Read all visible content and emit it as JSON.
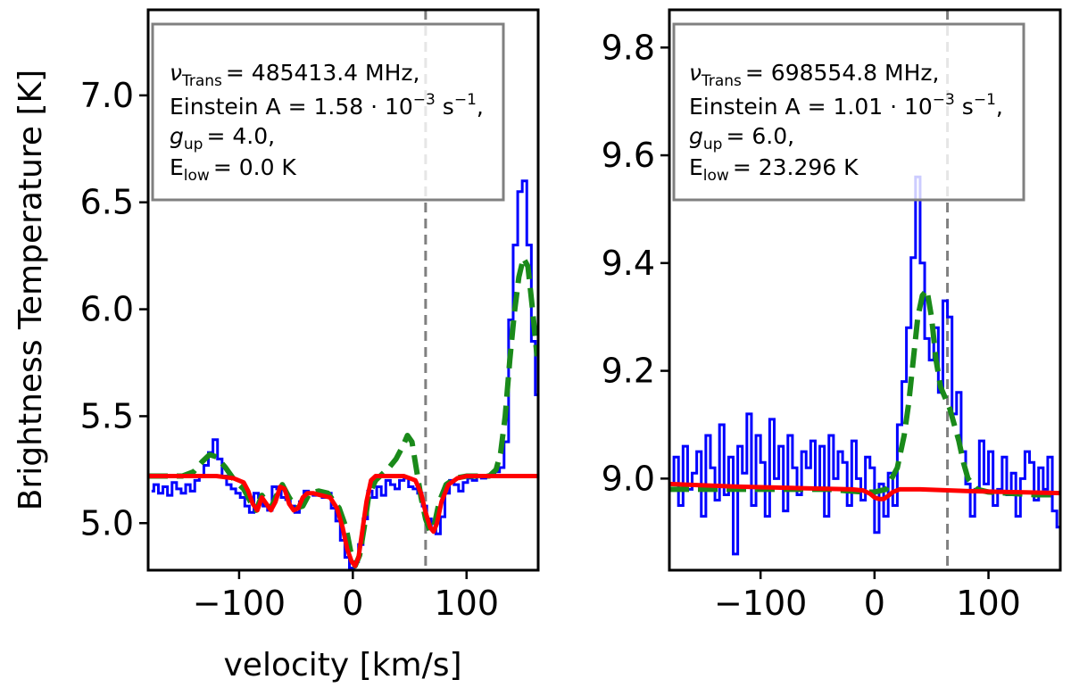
{
  "chart_data": [
    {
      "type": "line",
      "xlabel": "velocity [km/s]",
      "ylabel": "Brightness Temperature [K]",
      "xlim": [
        -180,
        163
      ],
      "ylim": [
        4.78,
        7.4
      ],
      "xticks": [
        -100,
        0,
        100
      ],
      "xtick_labels": [
        "−100",
        "0",
        "100"
      ],
      "yticks": [
        5.0,
        5.5,
        6.0,
        6.5,
        7.0
      ],
      "ytick_labels": [
        "5.0",
        "5.5",
        "6.0",
        "6.5",
        "7.0"
      ],
      "grid": false,
      "vline_x": 64,
      "annotation": {
        "nu_value": "= 485413.4 MHz,",
        "einstein_pre": "Einstein A = 1.58 · 10",
        "einstein_exp": "−3",
        "einstein_unit": " s",
        "einstein_unit_exp": "−1",
        "einstein_end": ",",
        "g_value": "= 4.0,",
        "e_value": "= 0.0 K"
      },
      "series": [
        {
          "style": "blue-step",
          "color": "#0000ff",
          "x": [
            -177,
            -173,
            -169,
            -165,
            -161,
            -157,
            -153,
            -149,
            -145,
            -141,
            -137,
            -133,
            -129,
            -125,
            -121,
            -117,
            -113,
            -109,
            -105,
            -101,
            -97,
            -93,
            -89,
            -85,
            -81,
            -77,
            -73,
            -69,
            -65,
            -61,
            -57,
            -53,
            -49,
            -45,
            -41,
            -37,
            -33,
            -29,
            -25,
            -21,
            -17,
            -13,
            -9,
            -5,
            -1,
            3,
            7,
            11,
            15,
            19,
            23,
            27,
            31,
            35,
            39,
            43,
            47,
            51,
            55,
            59,
            63,
            67,
            71,
            75,
            79,
            83,
            87,
            91,
            95,
            99,
            103,
            107,
            111,
            115,
            119,
            123,
            127,
            131,
            135,
            139,
            143,
            147,
            151,
            155,
            159,
            162
          ],
          "y": [
            5.15,
            5.18,
            5.14,
            5.17,
            5.13,
            5.19,
            5.16,
            5.14,
            5.18,
            5.15,
            5.2,
            5.22,
            5.27,
            5.33,
            5.39,
            5.3,
            5.22,
            5.18,
            5.16,
            5.14,
            5.12,
            5.08,
            5.05,
            5.14,
            5.12,
            5.08,
            5.06,
            5.17,
            5.16,
            5.12,
            5.11,
            5.08,
            5.05,
            5.1,
            5.15,
            5.14,
            5.13,
            5.15,
            5.12,
            5.14,
            5.07,
            5.01,
            4.92,
            4.84,
            4.79,
            4.82,
            4.9,
            5.02,
            5.15,
            5.12,
            5.17,
            5.13,
            5.2,
            5.18,
            5.16,
            5.2,
            5.21,
            5.17,
            5.16,
            5.14,
            5.08,
            5.02,
            4.97,
            4.95,
            5.03,
            5.14,
            5.2,
            5.18,
            5.15,
            5.19,
            5.21,
            5.2,
            5.22,
            5.21,
            5.22,
            5.23,
            5.24,
            5.26,
            5.38,
            5.95,
            6.3,
            6.55,
            6.6,
            6.3,
            5.85,
            5.6
          ]
        },
        {
          "style": "green-dashed",
          "color": "#1a8a1a",
          "x": [
            -180,
            -150,
            -140,
            -132,
            -126,
            -120,
            -112,
            -104,
            -96,
            -90,
            -85,
            -80,
            -76,
            -72,
            -68,
            -62,
            -56,
            -50,
            -44,
            -38,
            -30,
            -22,
            -12,
            -6,
            -2,
            2,
            6,
            10,
            14,
            20,
            26,
            32,
            38,
            44,
            48,
            52,
            56,
            60,
            64,
            68,
            72,
            76,
            82,
            90,
            100,
            110,
            120,
            126,
            130,
            134,
            138,
            142,
            146,
            150,
            154,
            158,
            162
          ],
          "y": [
            5.22,
            5.22,
            5.24,
            5.29,
            5.32,
            5.31,
            5.26,
            5.2,
            5.16,
            5.1,
            5.06,
            5.13,
            5.1,
            5.07,
            5.12,
            5.18,
            5.12,
            5.07,
            5.08,
            5.14,
            5.15,
            5.14,
            5.07,
            4.98,
            4.87,
            4.8,
            4.85,
            4.98,
            5.13,
            5.2,
            5.23,
            5.26,
            5.3,
            5.36,
            5.41,
            5.38,
            5.25,
            5.12,
            5.02,
            4.96,
            5.0,
            5.1,
            5.18,
            5.21,
            5.22,
            5.22,
            5.22,
            5.25,
            5.33,
            5.5,
            5.76,
            5.98,
            6.15,
            6.24,
            6.2,
            6.0,
            5.78
          ]
        },
        {
          "style": "red-solid",
          "color": "#ff0000",
          "x": [
            -180,
            -150,
            -135,
            -120,
            -105,
            -96,
            -92,
            -88,
            -84,
            -80,
            -76,
            -72,
            -68,
            -64,
            -60,
            -56,
            -52,
            -48,
            -44,
            -40,
            -35,
            -28,
            -20,
            -14,
            -9,
            -5,
            -1,
            2,
            5,
            8,
            12,
            16,
            20,
            30,
            45,
            55,
            60,
            64,
            68,
            71,
            74,
            78,
            84,
            92,
            100,
            120,
            140,
            162
          ],
          "y": [
            5.22,
            5.22,
            5.22,
            5.22,
            5.21,
            5.19,
            5.15,
            5.09,
            5.06,
            5.12,
            5.09,
            5.06,
            5.1,
            5.17,
            5.16,
            5.09,
            5.06,
            5.07,
            5.12,
            5.14,
            5.14,
            5.13,
            5.12,
            5.07,
            4.98,
            4.88,
            4.82,
            4.8,
            4.84,
            4.95,
            5.1,
            5.2,
            5.22,
            5.22,
            5.22,
            5.2,
            5.14,
            5.05,
            4.98,
            4.96,
            5.0,
            5.1,
            5.18,
            5.21,
            5.22,
            5.22,
            5.22,
            5.22
          ]
        }
      ]
    },
    {
      "type": "line",
      "xlabel": "",
      "ylabel": "",
      "xlim": [
        -180,
        163
      ],
      "ylim": [
        8.83,
        9.87
      ],
      "xticks": [
        -100,
        0,
        100
      ],
      "xtick_labels": [
        "−100",
        "0",
        "100"
      ],
      "yticks": [
        9.0,
        9.2,
        9.4,
        9.6,
        9.8
      ],
      "ytick_labels": [
        "9.0",
        "9.2",
        "9.4",
        "9.6",
        "9.8"
      ],
      "grid": false,
      "vline_x": 64,
      "annotation": {
        "nu_value": "= 698554.8 MHz,",
        "einstein_pre": "Einstein A = 1.01 · 10",
        "einstein_exp": "−3",
        "einstein_unit": " s",
        "einstein_unit_exp": "−1",
        "einstein_end": ",",
        "g_value": "= 6.0,",
        "e_value": "= 23.296 K"
      },
      "series": [
        {
          "style": "blue-step",
          "color": "#0000ff",
          "x": [
            -178,
            -174,
            -170,
            -166,
            -162,
            -158,
            -154,
            -150,
            -146,
            -142,
            -138,
            -134,
            -130,
            -126,
            -122,
            -118,
            -114,
            -110,
            -106,
            -102,
            -98,
            -94,
            -90,
            -86,
            -82,
            -78,
            -74,
            -70,
            -66,
            -62,
            -58,
            -54,
            -50,
            -46,
            -42,
            -38,
            -34,
            -30,
            -26,
            -22,
            -18,
            -14,
            -10,
            -6,
            -2,
            2,
            6,
            10,
            14,
            18,
            22,
            26,
            30,
            34,
            38,
            42,
            46,
            50,
            54,
            58,
            62,
            66,
            70,
            74,
            78,
            82,
            86,
            90,
            94,
            98,
            102,
            106,
            110,
            114,
            118,
            122,
            126,
            130,
            134,
            138,
            142,
            146,
            150,
            154,
            158,
            162
          ],
          "y": [
            8.99,
            9.04,
            8.95,
            9.06,
            8.98,
            9.01,
            9.05,
            8.93,
            9.08,
            9.02,
            8.96,
            9.1,
            8.97,
            9.04,
            8.86,
            9.06,
            9.01,
            9.12,
            8.95,
            9.08,
            9.03,
            8.93,
            9.11,
            9.0,
            9.06,
            8.94,
            9.08,
            9.02,
            8.97,
            9.05,
            9.02,
            9.07,
            8.98,
            9.06,
            8.93,
            9.08,
            9.0,
            9.05,
            9.03,
            8.95,
            9.07,
            9.0,
            8.96,
            9.04,
            9.02,
            8.9,
            8.99,
            8.93,
            9.01,
            8.95,
            9.1,
            9.18,
            9.28,
            9.41,
            9.56,
            9.4,
            9.26,
            9.22,
            9.28,
            9.16,
            9.33,
            9.3,
            9.12,
            9.16,
            9.05,
            8.99,
            8.93,
            8.98,
            9.07,
            8.99,
            9.05,
            8.95,
            8.98,
            9.04,
            8.97,
            9.01,
            8.93,
            9.0,
            9.05,
            9.03,
            8.96,
            9.02,
            8.98,
            9.04,
            8.94,
            8.91
          ]
        },
        {
          "style": "green-dashed",
          "color": "#1a8a1a",
          "x": [
            -180,
            -100,
            -40,
            -10,
            0,
            10,
            20,
            26,
            30,
            34,
            38,
            42,
            46,
            50,
            54,
            58,
            62,
            66,
            70,
            74,
            78,
            82,
            90,
            100,
            140,
            163
          ],
          "y": [
            8.98,
            8.98,
            8.98,
            8.975,
            8.975,
            8.98,
            9.02,
            9.08,
            9.14,
            9.22,
            9.3,
            9.34,
            9.35,
            9.3,
            9.22,
            9.17,
            9.15,
            9.13,
            9.1,
            9.07,
            9.03,
            9.0,
            8.98,
            8.975,
            8.97,
            8.97
          ]
        },
        {
          "style": "red-solid",
          "color": "#ff0000",
          "x": [
            -180,
            -120,
            -60,
            -20,
            -10,
            -4,
            0,
            4,
            8,
            12,
            16,
            22,
            40,
            80,
            120,
            163
          ],
          "y": [
            8.99,
            8.985,
            8.982,
            8.98,
            8.978,
            8.972,
            8.965,
            8.962,
            8.962,
            8.968,
            8.975,
            8.98,
            8.98,
            8.977,
            8.975,
            8.973
          ]
        }
      ]
    }
  ]
}
